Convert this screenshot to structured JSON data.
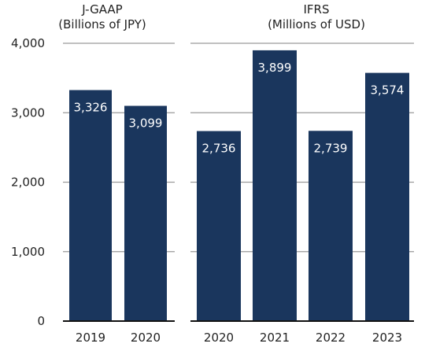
{
  "chart_data": {
    "type": "bar",
    "y_ticks": [
      "0",
      "1,000",
      "2,000",
      "3,000",
      "4,000"
    ],
    "ylim": [
      0,
      4000
    ],
    "grid": true,
    "bar_color": "#1a365d",
    "groups": [
      {
        "title": "J-GAAP",
        "subtitle": "(Billions of JPY)",
        "categories": [
          "2019",
          "2020"
        ],
        "values": [
          3326,
          3099
        ],
        "labels": [
          "3,326",
          "3,099"
        ]
      },
      {
        "title": "IFRS",
        "subtitle": "(Millions of USD)",
        "categories": [
          "2020",
          "2021",
          "2022",
          "2023"
        ],
        "values": [
          2736,
          3899,
          2739,
          3574
        ],
        "labels": [
          "2,736",
          "3,899",
          "2,739",
          "3,574"
        ]
      }
    ]
  }
}
